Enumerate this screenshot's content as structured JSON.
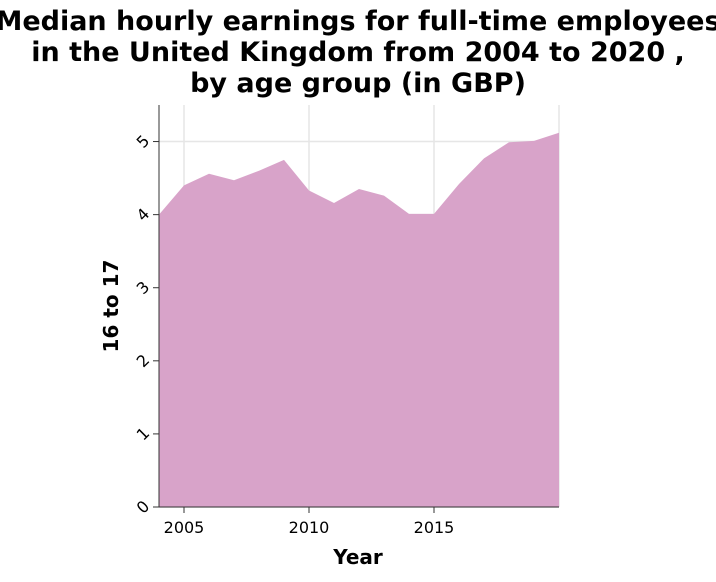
{
  "chart_data": {
    "type": "area",
    "title_lines": [
      "Median hourly earnings for full-time employees",
      "in the United Kingdom from 2004 to 2020 ,",
      "by age group (in GBP)"
    ],
    "xlabel": "Year",
    "ylabel": "16 to 17",
    "x": [
      2004,
      2005,
      2006,
      2007,
      2008,
      2009,
      2010,
      2011,
      2012,
      2013,
      2014,
      2015,
      2016,
      2017,
      2018,
      2019,
      2020
    ],
    "y": [
      4.0,
      4.4,
      4.56,
      4.47,
      4.6,
      4.75,
      4.33,
      4.16,
      4.35,
      4.26,
      4.01,
      4.01,
      4.42,
      4.77,
      4.99,
      5.01,
      5.12
    ],
    "xlim": [
      2004,
      2020
    ],
    "ylim": [
      0,
      5.5
    ],
    "xticks": [
      2005,
      2010,
      2015
    ],
    "yticks": [
      0,
      1,
      2,
      3,
      4,
      5
    ],
    "grid": true,
    "fill_color": "#d8a3c9",
    "grid_color": "#e6e6e6",
    "axis_color": "#333333"
  }
}
